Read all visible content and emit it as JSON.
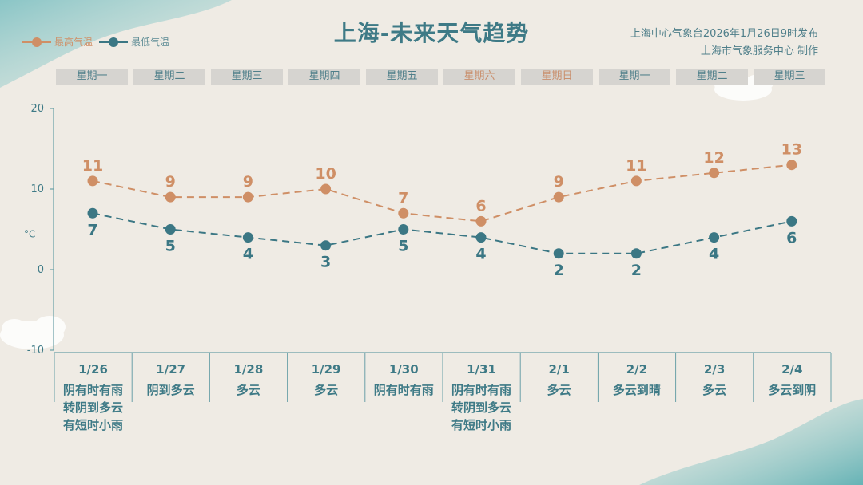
{
  "title": "上海-未来天气趋势",
  "source_line1": "上海中心气象台2026年1月26日9时发布",
  "source_line2": "上海市气象服务中心  制作",
  "colors": {
    "high": "#cf8f66",
    "low": "#3b7784",
    "title": "#3e7a86",
    "weekend": "#c98f6d"
  },
  "days": [
    {
      "label": "星期一",
      "weekend": false
    },
    {
      "label": "星期二",
      "weekend": false
    },
    {
      "label": "星期三",
      "weekend": false
    },
    {
      "label": "星期四",
      "weekend": false
    },
    {
      "label": "星期五",
      "weekend": false
    },
    {
      "label": "星期六",
      "weekend": true
    },
    {
      "label": "星期日",
      "weekend": true
    },
    {
      "label": "星期一",
      "weekend": false
    },
    {
      "label": "星期二",
      "weekend": false
    },
    {
      "label": "星期三",
      "weekend": false
    }
  ],
  "chart_data": {
    "type": "line",
    "categories": [
      "1/26",
      "1/27",
      "1/28",
      "1/29",
      "1/30",
      "1/31",
      "2/1",
      "2/2",
      "2/3",
      "2/4"
    ],
    "weather": [
      "阴有时有雨\n转阴到多云\n有短时小雨",
      "阴到多云",
      "多云",
      "多云",
      "阴有时有雨",
      "阴有时有雨\n转阴到多云\n有短时小雨",
      "多云",
      "多云到晴",
      "多云",
      "多云到阴"
    ],
    "series": [
      {
        "name": "最高气温",
        "key": "high",
        "values": [
          11,
          9,
          9,
          10,
          7,
          6,
          9,
          11,
          12,
          13
        ]
      },
      {
        "name": "最低气温",
        "key": "low",
        "values": [
          7,
          5,
          4,
          3,
          5,
          4,
          2,
          2,
          4,
          6
        ]
      }
    ],
    "yticks": [
      20,
      10,
      0,
      -10
    ],
    "ylim": [
      -10,
      20
    ],
    "ylabel": "°C",
    "grid": false,
    "legend_position": "top-left"
  }
}
